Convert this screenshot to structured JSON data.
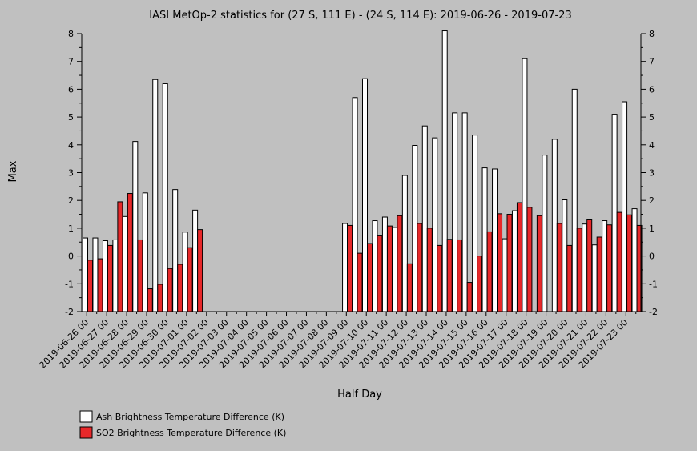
{
  "chart_data": {
    "type": "bar",
    "title": "IASI MetOp-2 statistics for (27 S, 111 E) - (24 S, 114 E): 2019-06-26 - 2019-07-23",
    "xlabel": "Half Day",
    "ylabel": "Max",
    "ylim": [
      -2,
      8
    ],
    "yticks": [
      -2,
      -1,
      0,
      1,
      2,
      3,
      4,
      5,
      6,
      7,
      8
    ],
    "x_tick_labels": [
      "2019-06-26 00",
      "2019-06-27 00",
      "2019-06-28 00",
      "2019-06-29 00",
      "2019-06-30 00",
      "2019-07-01 00",
      "2019-07-02 00",
      "2019-07-03 00",
      "2019-07-04 00",
      "2019-07-05 00",
      "2019-07-06 00",
      "2019-07-07 00",
      "2019-07-08 00",
      "2019-07-09 00",
      "2019-07-10 00",
      "2019-07-11 00",
      "2019-07-12 00",
      "2019-07-13 00",
      "2019-07-14 00",
      "2019-07-15 00",
      "2019-07-16 00",
      "2019-07-17 00",
      "2019-07-18 00",
      "2019-07-19 00",
      "2019-07-20 00",
      "2019-07-21 00",
      "2019-07-22 00",
      "2019-07-23 00"
    ],
    "grid": false,
    "legend_position": "bottom-left",
    "series": [
      {
        "name": "Ash Brightness Temperature Difference (K)",
        "color": "#ffffff",
        "values": [
          0.65,
          0.65,
          0.55,
          0.58,
          1.42,
          4.12,
          2.27,
          6.35,
          6.2,
          2.39,
          0.86,
          1.65,
          null,
          null,
          null,
          null,
          null,
          null,
          null,
          null,
          null,
          null,
          null,
          null,
          null,
          null,
          1.17,
          5.7,
          6.38,
          1.27,
          1.4,
          1.02,
          2.9,
          3.98,
          4.68,
          4.25,
          8.1,
          5.15,
          5.15,
          4.35,
          3.17,
          3.13,
          0.62,
          1.63,
          7.1,
          null,
          3.63,
          4.2,
          2.02,
          6.0,
          1.15,
          0.4,
          1.27,
          5.1,
          5.55,
          1.7
        ]
      },
      {
        "name": "SO2 Brightness Temperature Difference (K)",
        "color": "#e8282a",
        "values": [
          -0.15,
          -0.1,
          0.38,
          1.95,
          2.25,
          0.58,
          -1.18,
          -1.02,
          -0.45,
          -0.3,
          0.3,
          0.95,
          null,
          null,
          null,
          null,
          null,
          null,
          null,
          null,
          null,
          null,
          null,
          null,
          null,
          null,
          1.1,
          0.1,
          0.45,
          0.75,
          1.08,
          1.45,
          -0.28,
          1.17,
          1.0,
          0.38,
          0.6,
          0.58,
          -0.95,
          0.0,
          0.87,
          1.52,
          1.5,
          1.92,
          1.75,
          1.45,
          null,
          1.17,
          0.38,
          1.0,
          1.3,
          0.68,
          1.12,
          1.57,
          1.48,
          1.1
        ]
      }
    ]
  }
}
